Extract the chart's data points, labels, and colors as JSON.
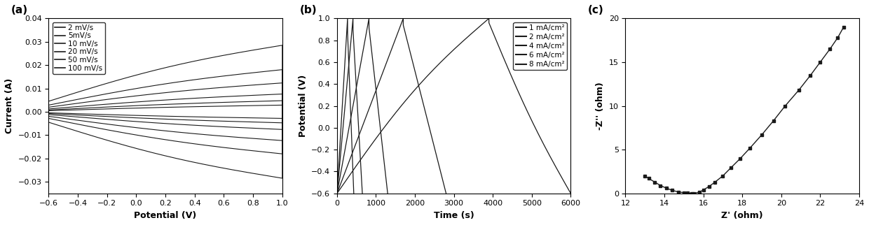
{
  "panel_a": {
    "xlabel": "Potential (V)",
    "ylabel": "Current (A)",
    "xlim": [
      -0.6,
      1.0
    ],
    "ylim": [
      -0.035,
      0.04
    ],
    "yticks": [
      -0.03,
      -0.02,
      -0.01,
      0.0,
      0.01,
      0.02,
      0.03,
      0.04
    ],
    "xticks": [
      -0.6,
      -0.4,
      -0.2,
      0.0,
      0.2,
      0.4,
      0.6,
      0.8,
      1.0
    ],
    "scan_rate_labels": [
      "2 mV/s",
      "5mV/s",
      "10 mV/s",
      "20 mV/s",
      "50 mV/s",
      "100 mV/s"
    ],
    "amplitudes": [
      0.003,
      0.005,
      0.008,
      0.013,
      0.019,
      0.03
    ]
  },
  "panel_b": {
    "xlabel": "Time (s)",
    "ylabel": "Potential (V)",
    "xlim": [
      0,
      6000
    ],
    "ylim": [
      -0.6,
      1.0
    ],
    "yticks": [
      -0.6,
      -0.4,
      -0.2,
      0.0,
      0.2,
      0.4,
      0.6,
      0.8,
      1.0
    ],
    "xticks": [
      0,
      1000,
      2000,
      3000,
      4000,
      5000,
      6000
    ],
    "cd_labels": [
      "1 mA/cm²",
      "2 mA/cm²",
      "4 mA/cm²",
      "6 mA/cm²",
      "8 mA/cm²"
    ],
    "charge_end_times": [
      3900,
      1700,
      820,
      410,
      270
    ],
    "discharge_end_times": [
      6000,
      2800,
      1300,
      650,
      430
    ],
    "ir_drops": [
      0.04,
      0.06,
      0.08,
      0.1,
      0.12
    ]
  },
  "panel_c": {
    "xlabel": "Z' (ohm)",
    "ylabel": "-Z'' (ohm)",
    "xlim": [
      12,
      24
    ],
    "ylim": [
      0,
      20
    ],
    "yticks": [
      0,
      5,
      10,
      15,
      20
    ],
    "xticks": [
      12,
      14,
      16,
      18,
      20,
      22,
      24
    ],
    "z_real_hf": [
      13.0,
      13.2,
      13.5,
      13.8,
      14.1,
      14.4,
      14.7,
      15.0,
      15.2,
      15.4,
      15.5
    ],
    "z_imag_hf": [
      2.0,
      1.7,
      1.3,
      0.9,
      0.6,
      0.35,
      0.18,
      0.08,
      0.04,
      0.01,
      0.0
    ],
    "z_real_lf": [
      15.5,
      15.8,
      16.0,
      16.3,
      16.6,
      17.0,
      17.4,
      17.9,
      18.4,
      19.0,
      19.6,
      20.2,
      20.9,
      21.5,
      22.0,
      22.5,
      22.9,
      23.2
    ],
    "z_imag_lf": [
      0.0,
      0.15,
      0.4,
      0.8,
      1.3,
      2.0,
      2.9,
      4.0,
      5.2,
      6.7,
      8.3,
      10.0,
      11.8,
      13.5,
      15.0,
      16.5,
      17.8,
      19.0
    ]
  },
  "line_color": "#1a1a1a",
  "bg_color": "#ffffff",
  "label_fontsize": 9,
  "tick_fontsize": 8,
  "legend_fontsize": 7.5
}
